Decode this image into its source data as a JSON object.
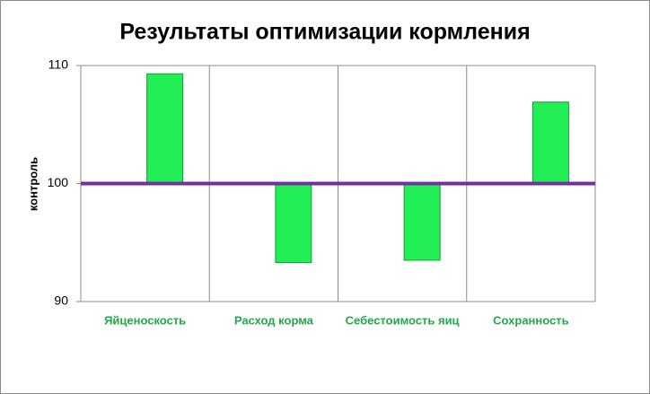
{
  "chart_data": {
    "type": "bar",
    "title": "Результаты оптимизации кормления",
    "ylabel": "контроль",
    "categories": [
      "Яйценоскость",
      "Расход корма",
      "Себестоимость яиц",
      "Сохранность"
    ],
    "values": [
      109.3,
      93.3,
      93.5,
      106.9
    ],
    "color": "#22ee55",
    "baseline": 100,
    "baseline_color": "#7030a0",
    "category_color": "#22a84a",
    "ylim": [
      90,
      110
    ],
    "yticks": [
      90,
      100,
      110
    ],
    "grid": true
  }
}
